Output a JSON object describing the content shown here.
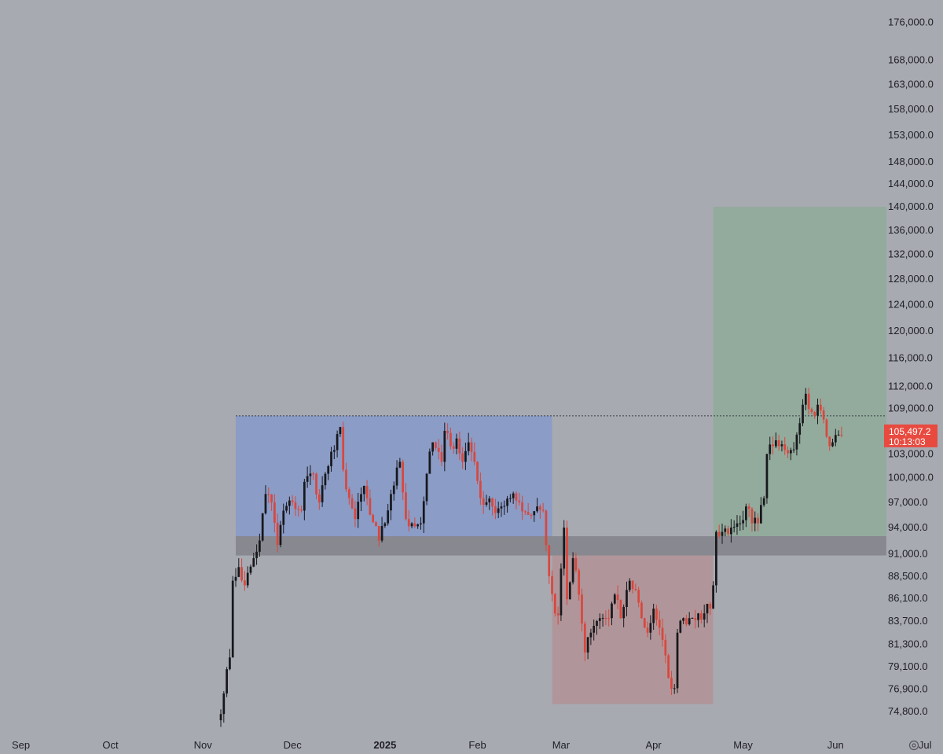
{
  "colors": {
    "background": "#a8aab2",
    "up_candle": "#17181c",
    "down_candle": "#d9473d",
    "range_box": "#8b9cc6",
    "lower_box": "#b0969a",
    "target_box": "#93ab9d",
    "support_band": "#878890",
    "dotted_line": "#3b3d45",
    "price_tag": "#e84a3f",
    "axis_text": "#1f1f24"
  },
  "price_tag": {
    "price": "105,497.2",
    "countdown": "10:13:03"
  },
  "icons": {
    "settings": "gear-icon"
  },
  "chart_data": {
    "type": "candlestick",
    "title": "",
    "xlabel": "",
    "ylabel": "",
    "y_scale": "log",
    "ylim": [
      73000,
      181000
    ],
    "xlim": [
      "2024-08-25",
      "2025-07-07"
    ],
    "y_ticks": [
      "176,000.0",
      "168,000.0",
      "163,000.0",
      "158,000.0",
      "153,000.0",
      "148,000.0",
      "144,000.0",
      "140,000.0",
      "136,000.0",
      "132,000.0",
      "128,000.0",
      "124,000.0",
      "120,000.0",
      "116,000.0",
      "112,000.0",
      "109,000.0",
      "106,000.0",
      "103,000.0",
      "100,000.0",
      "97,000.0",
      "94,000.0",
      "91,000.0",
      "88,500.0",
      "86,100.0",
      "83,700.0",
      "81,300.0",
      "79,100.0",
      "76,900.0",
      "74,800.0"
    ],
    "x_ticks": [
      {
        "label": "Sep",
        "date": "2024-09-01",
        "bold": false
      },
      {
        "label": "Oct",
        "date": "2024-10-01",
        "bold": false
      },
      {
        "label": "Nov",
        "date": "2024-11-01",
        "bold": false
      },
      {
        "label": "Dec",
        "date": "2024-12-01",
        "bold": false
      },
      {
        "label": "2025",
        "date": "2025-01-01",
        "bold": true
      },
      {
        "label": "Feb",
        "date": "2025-02-01",
        "bold": false
      },
      {
        "label": "Mar",
        "date": "2025-03-01",
        "bold": false
      },
      {
        "label": "Apr",
        "date": "2025-04-01",
        "bold": false
      },
      {
        "label": "May",
        "date": "2025-05-01",
        "bold": false
      },
      {
        "label": "Jun",
        "date": "2025-06-01",
        "bold": false
      },
      {
        "label": "Jul",
        "date": "2025-07-01",
        "bold": false
      }
    ],
    "zones": [
      {
        "name": "range",
        "x_start": "2024-11-12",
        "x_end": "2025-02-26",
        "y_low": 93000,
        "y_high": 108000
      },
      {
        "name": "support",
        "x_start": "2024-11-12",
        "x_end": "2025-06-18",
        "y_low": 90800,
        "y_high": 93000
      },
      {
        "name": "correction",
        "x_start": "2025-02-26",
        "x_end": "2025-04-21",
        "y_low": 75500,
        "y_high": 90800
      },
      {
        "name": "target",
        "x_start": "2025-04-21",
        "x_end": "2025-06-18",
        "y_low": 93000,
        "y_high": 140000
      }
    ],
    "dotted_level": {
      "price": 108000,
      "x_start": "2024-11-12",
      "x_end": "2025-06-18"
    },
    "last_price": 105497.2,
    "candle_anchors": [
      [
        "2024-11-06",
        74000
      ],
      [
        "2024-11-08",
        76500
      ],
      [
        "2024-11-10",
        80000
      ],
      [
        "2024-11-11",
        88000
      ],
      [
        "2024-11-13",
        89500
      ],
      [
        "2024-11-15",
        87500
      ],
      [
        "2024-11-18",
        90500
      ],
      [
        "2024-11-20",
        92500
      ],
      [
        "2024-11-22",
        98000
      ],
      [
        "2024-11-24",
        97000
      ],
      [
        "2024-11-26",
        92000
      ],
      [
        "2024-11-28",
        96000
      ],
      [
        "2024-12-01",
        97000
      ],
      [
        "2024-12-04",
        96000
      ],
      [
        "2024-12-05",
        99500
      ],
      [
        "2024-12-08",
        100500
      ],
      [
        "2024-12-10",
        97000
      ],
      [
        "2024-12-12",
        100500
      ],
      [
        "2024-12-15",
        103500
      ],
      [
        "2024-12-17",
        106500
      ],
      [
        "2024-12-18",
        101000
      ],
      [
        "2024-12-20",
        97500
      ],
      [
        "2024-12-22",
        95000
      ],
      [
        "2024-12-25",
        99000
      ],
      [
        "2024-12-27",
        95500
      ],
      [
        "2024-12-30",
        92500
      ],
      [
        "2025-01-01",
        94500
      ],
      [
        "2025-01-03",
        98000
      ],
      [
        "2025-01-06",
        102000
      ],
      [
        "2025-01-08",
        95000
      ],
      [
        "2025-01-10",
        94500
      ],
      [
        "2025-01-13",
        94500
      ],
      [
        "2025-01-15",
        100500
      ],
      [
        "2025-01-17",
        104500
      ],
      [
        "2025-01-20",
        102000
      ],
      [
        "2025-01-21",
        106000
      ],
      [
        "2025-01-23",
        104000
      ],
      [
        "2025-01-25",
        105000
      ],
      [
        "2025-01-27",
        102000
      ],
      [
        "2025-01-29",
        104500
      ],
      [
        "2025-01-31",
        102000
      ],
      [
        "2025-02-02",
        97500
      ],
      [
        "2025-02-04",
        97000
      ],
      [
        "2025-02-06",
        96500
      ],
      [
        "2025-02-09",
        96500
      ],
      [
        "2025-02-12",
        97500
      ],
      [
        "2025-02-15",
        97000
      ],
      [
        "2025-02-18",
        95500
      ],
      [
        "2025-02-21",
        96500
      ],
      [
        "2025-02-23",
        96000
      ],
      [
        "2025-02-25",
        88500
      ],
      [
        "2025-02-27",
        84500
      ],
      [
        "2025-02-28",
        84300
      ],
      [
        "2025-03-02",
        94000
      ],
      [
        "2025-03-03",
        86000
      ],
      [
        "2025-03-05",
        90500
      ],
      [
        "2025-03-07",
        86500
      ],
      [
        "2025-03-09",
        80500
      ],
      [
        "2025-03-11",
        82500
      ],
      [
        "2025-03-14",
        84000
      ],
      [
        "2025-03-17",
        84000
      ],
      [
        "2025-03-19",
        86500
      ],
      [
        "2025-03-21",
        84000
      ],
      [
        "2025-03-24",
        88000
      ],
      [
        "2025-03-26",
        87000
      ],
      [
        "2025-03-28",
        84000
      ],
      [
        "2025-03-30",
        82500
      ],
      [
        "2025-04-01",
        85000
      ],
      [
        "2025-04-03",
        83000
      ],
      [
        "2025-04-06",
        78000
      ],
      [
        "2025-04-08",
        77000
      ],
      [
        "2025-04-09",
        82500
      ],
      [
        "2025-04-11",
        84000
      ],
      [
        "2025-04-13",
        84000
      ],
      [
        "2025-04-16",
        84500
      ],
      [
        "2025-04-18",
        84500
      ],
      [
        "2025-04-20",
        85000
      ],
      [
        "2025-04-21",
        87500
      ],
      [
        "2025-04-22",
        93500
      ],
      [
        "2025-04-24",
        93500
      ],
      [
        "2025-04-27",
        94000
      ],
      [
        "2025-04-30",
        94500
      ],
      [
        "2025-05-02",
        96500
      ],
      [
        "2025-05-04",
        94500
      ],
      [
        "2025-05-06",
        94500
      ],
      [
        "2025-05-08",
        97500
      ],
      [
        "2025-05-09",
        103000
      ],
      [
        "2025-05-11",
        104000
      ],
      [
        "2025-05-13",
        104000
      ],
      [
        "2025-05-15",
        103500
      ],
      [
        "2025-05-17",
        103500
      ],
      [
        "2025-05-19",
        105500
      ],
      [
        "2025-05-21",
        109500
      ],
      [
        "2025-05-22",
        111000
      ],
      [
        "2025-05-24",
        108500
      ],
      [
        "2025-05-26",
        109500
      ],
      [
        "2025-05-28",
        107500
      ],
      [
        "2025-05-30",
        104000
      ],
      [
        "2025-05-31",
        104500
      ],
      [
        "2025-06-02",
        105500
      ],
      [
        "2025-06-03",
        105497.2
      ]
    ]
  }
}
